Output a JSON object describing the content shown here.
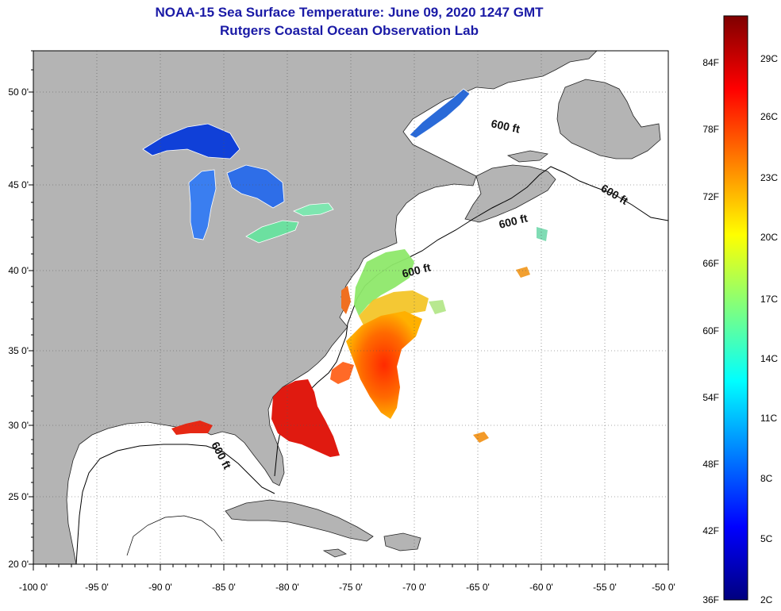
{
  "header": {
    "title": "NOAA-15 Sea Surface Temperature:  June 09, 2020 1247 GMT",
    "subtitle": "Rutgers Coastal Ocean Observation Lab"
  },
  "axes": {
    "lon_labels": [
      "-100 0'",
      "-95 0'",
      "-90 0'",
      "-85 0'",
      "-80 0'",
      "-75 0'",
      "-70 0'",
      "-65 0'",
      "-60 0'",
      "-55 0'",
      "-50 0'"
    ],
    "lat_labels": [
      "50 0'",
      "45 0'",
      "40 0'",
      "35 0'",
      "30 0'",
      "25 0'",
      "20 0'"
    ]
  },
  "contours": {
    "labels": [
      "600 ft",
      "600 ft",
      "600 ft",
      "600 ft",
      "600 ft"
    ]
  },
  "colorbar": {
    "f_labels": [
      "84F",
      "78F",
      "72F",
      "66F",
      "60F",
      "54F",
      "48F",
      "42F",
      "36F"
    ],
    "c_labels": [
      "29C",
      "26C",
      "23C",
      "20C",
      "17C",
      "14C",
      "11C",
      "8C",
      "5C",
      "2C"
    ]
  },
  "colors": {
    "land": "#b4b4b4",
    "ocean": "#ffffff",
    "title": "#1a1aa6",
    "colormap": [
      "#00007f",
      "#0000ff",
      "#007fff",
      "#00ffff",
      "#7fff7f",
      "#ffff00",
      "#ff7f00",
      "#ff0000",
      "#7f0000"
    ]
  }
}
